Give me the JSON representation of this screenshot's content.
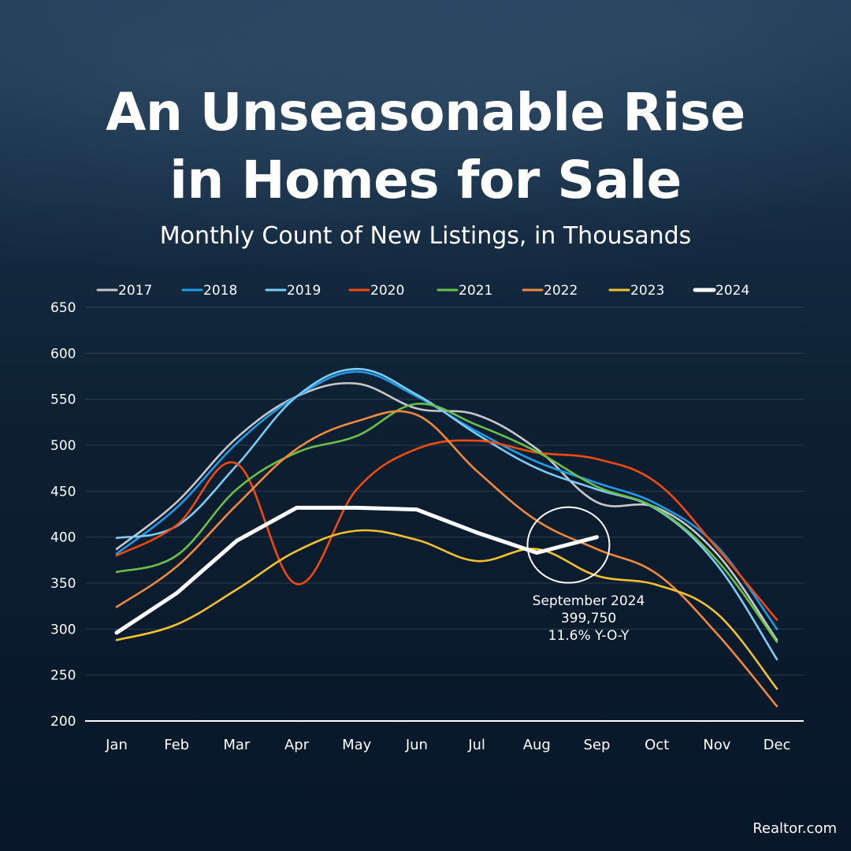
{
  "header": {
    "title": "An Unseasonable Rise in Homes for Sale",
    "subtitle": "Monthly Count of New Listings, in Thousands"
  },
  "annotation": {
    "line1": "September 2024",
    "line2": "399,750",
    "line3": "11.6% Y-O-Y"
  },
  "brand": "Realtor.com",
  "chart_data": {
    "type": "line",
    "categories": [
      "Jan",
      "Feb",
      "Mar",
      "Apr",
      "May",
      "Jun",
      "Jul",
      "Aug",
      "Sep",
      "Oct",
      "Nov",
      "Dec"
    ],
    "ylim": [
      200,
      650
    ],
    "yticks": [
      200,
      250,
      300,
      350,
      400,
      450,
      500,
      550,
      600,
      650
    ],
    "legend_position": "top",
    "grid": true,
    "series": [
      {
        "name": "2017",
        "color": "#c8c8c8",
        "values": [
          387,
          438,
          508,
          553,
          567,
          540,
          533,
          496,
          438,
          432,
          382,
          288
        ]
      },
      {
        "name": "2018",
        "color": "#1e9be9",
        "values": [
          382,
          432,
          502,
          553,
          580,
          553,
          515,
          482,
          459,
          436,
          390,
          300
        ]
      },
      {
        "name": "2019",
        "color": "#7ecbf5",
        "values": [
          399,
          412,
          478,
          553,
          583,
          555,
          512,
          475,
          452,
          430,
          370,
          267
        ]
      },
      {
        "name": "2020",
        "color": "#f04a0c",
        "values": [
          380,
          413,
          480,
          349,
          452,
          496,
          505,
          492,
          485,
          459,
          388,
          310
        ]
      },
      {
        "name": "2021",
        "color": "#6cc04a",
        "values": [
          362,
          380,
          452,
          492,
          510,
          545,
          522,
          493,
          455,
          431,
          375,
          286
        ]
      },
      {
        "name": "2022",
        "color": "#f08a3a",
        "values": [
          324,
          368,
          435,
          496,
          526,
          533,
          472,
          418,
          387,
          360,
          295,
          216
        ]
      },
      {
        "name": "2023",
        "color": "#f2c12e",
        "values": [
          288,
          305,
          343,
          385,
          407,
          397,
          374,
          387,
          358,
          348,
          317,
          235
        ]
      },
      {
        "name": "2024",
        "color": "#ffffff",
        "values": [
          296,
          339,
          396,
          432,
          432,
          430,
          405,
          383,
          400,
          null,
          null,
          null
        ]
      }
    ],
    "highlight": {
      "series": "2024",
      "category": "Sep"
    }
  }
}
